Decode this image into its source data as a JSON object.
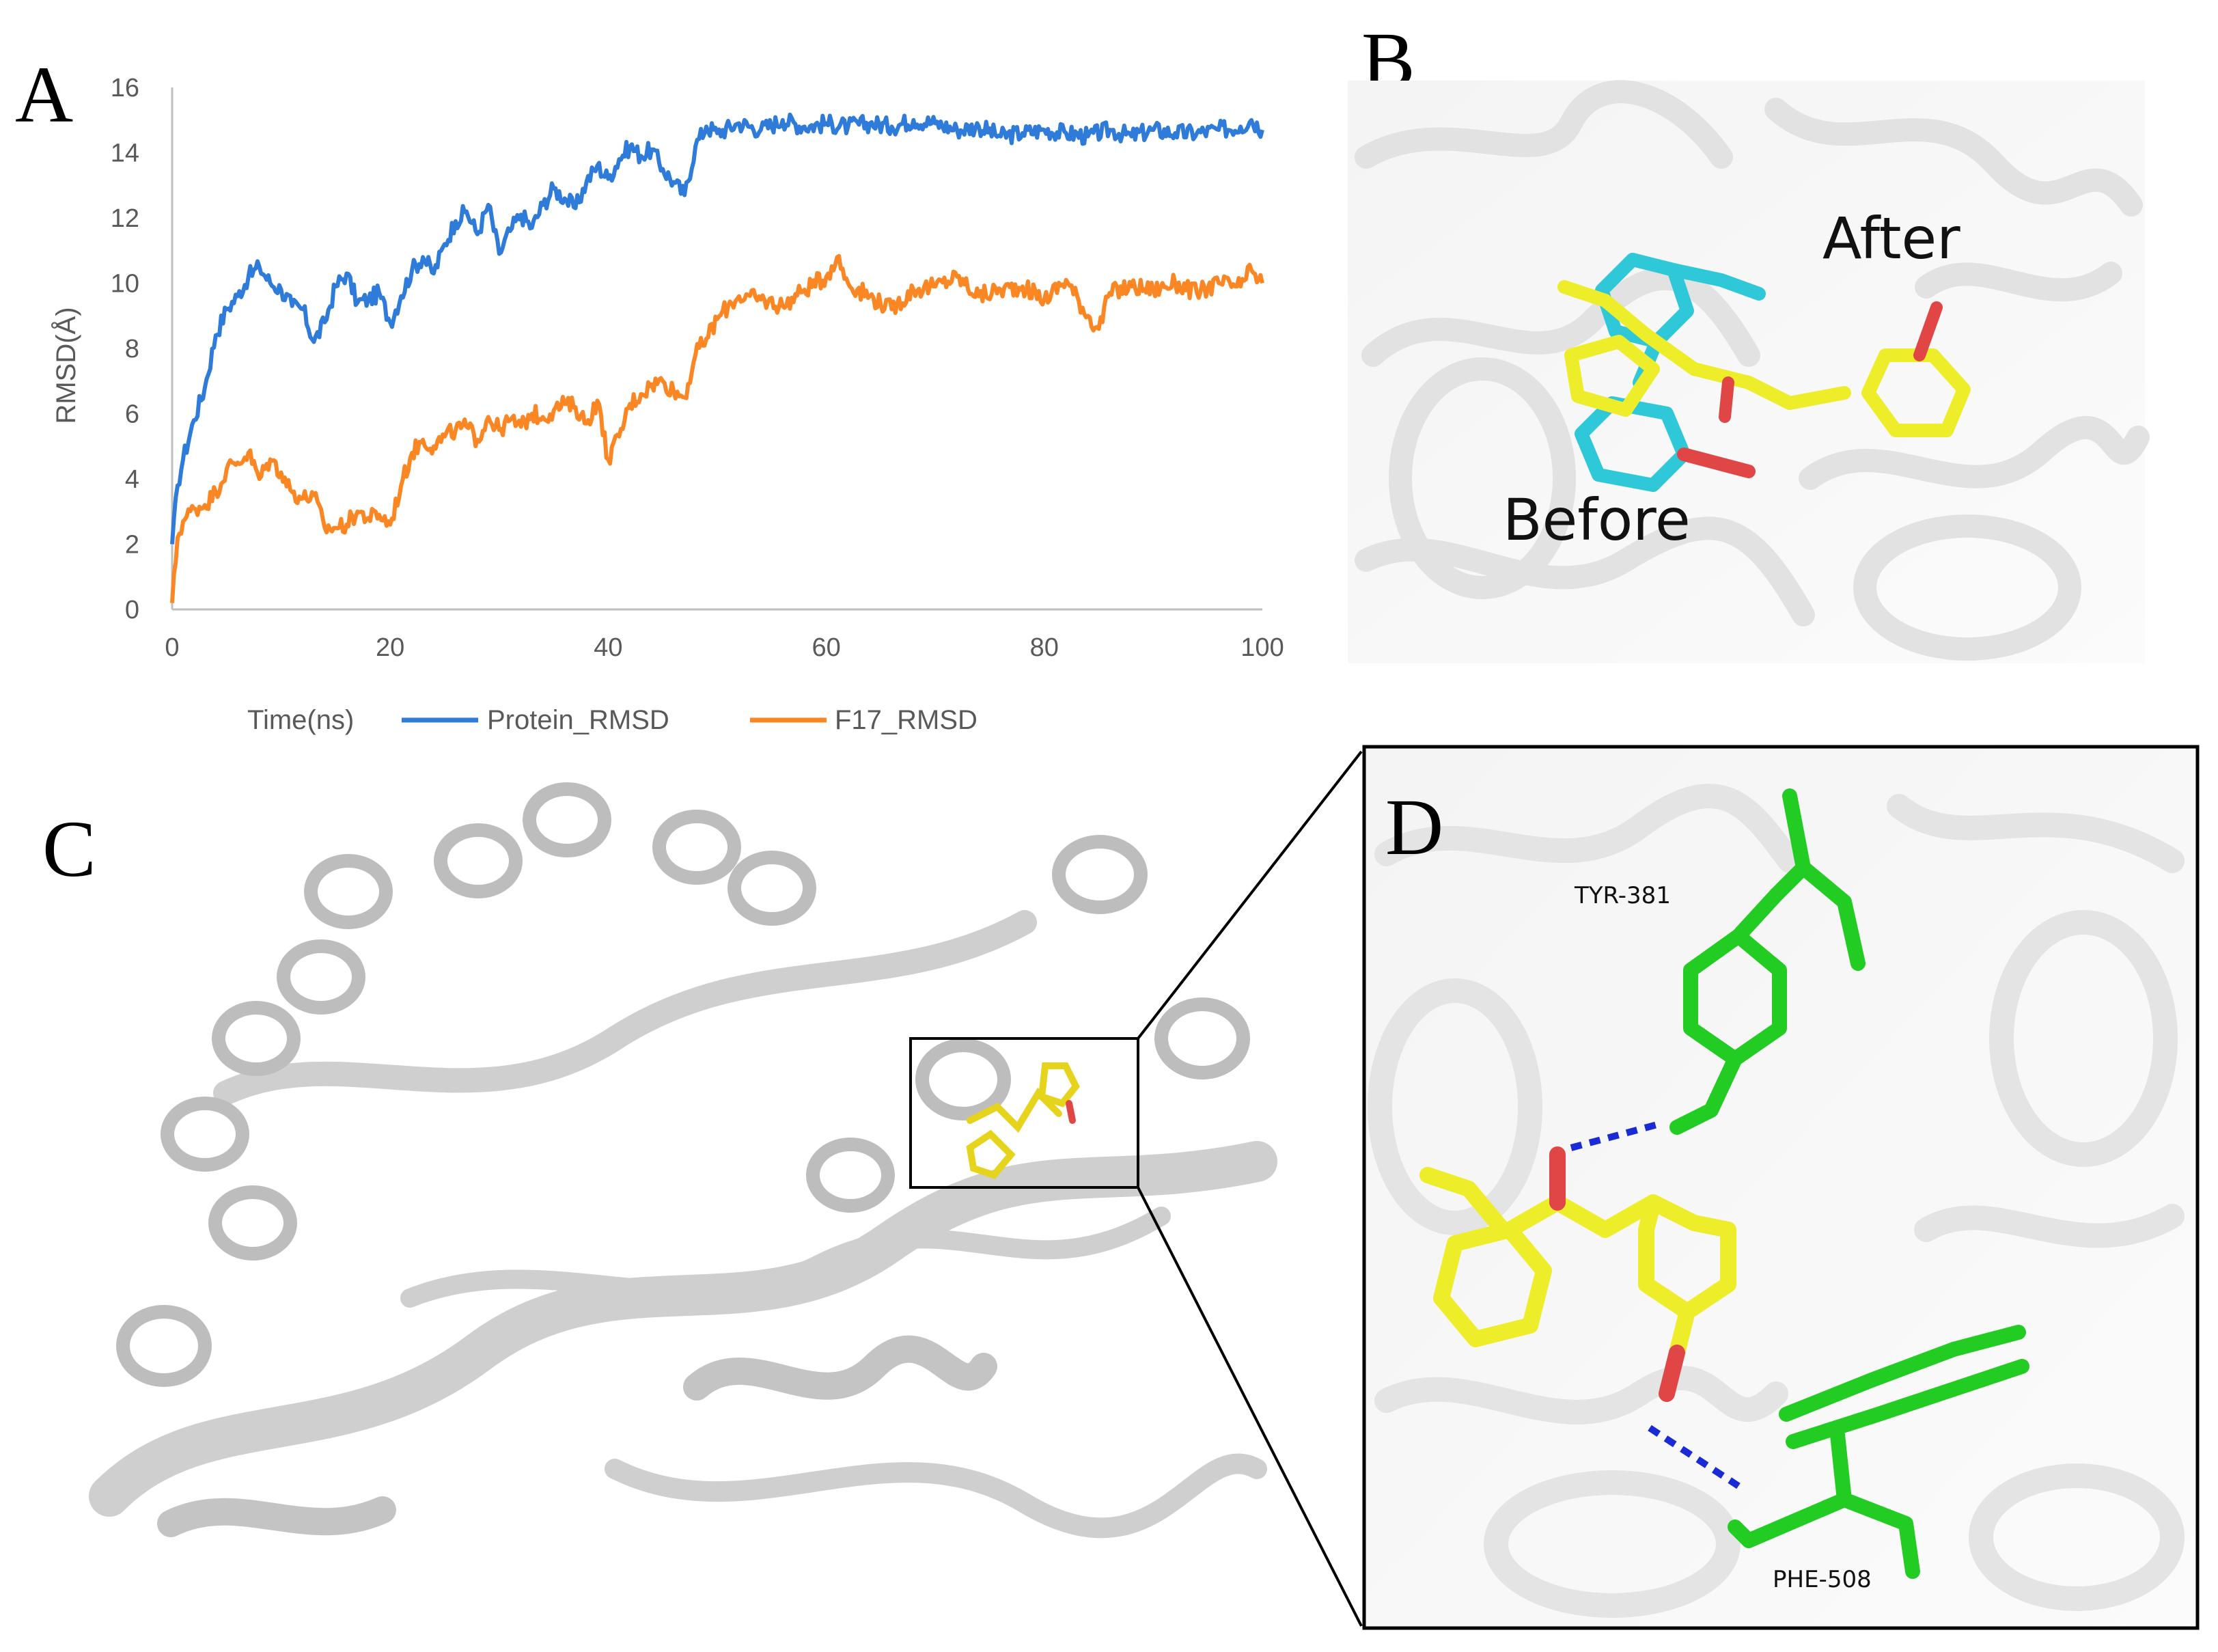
{
  "panels": {
    "A": {
      "letter": "A"
    },
    "B": {
      "letter": "B",
      "label_after": "After",
      "label_before": "Before"
    },
    "C": {
      "letter": "C"
    },
    "D": {
      "letter": "D",
      "residue_1": "TYR-381",
      "residue_2": "PHE-508"
    }
  },
  "colors": {
    "protein_series": "#2f7bd9",
    "ligand_series": "#fb8724",
    "ligand_yellow": "#eded2a",
    "ligand_cyan": "#2fc8d8",
    "residue_green": "#22cc22",
    "hbond": "#1a2ad6",
    "oxygen": "#e04646",
    "ribbon": "#e8e8e8"
  },
  "chart_data": {
    "type": "line",
    "xlabel": "Time(ns)",
    "ylabel": "RMSD(Å)",
    "xlim": [
      0,
      100
    ],
    "ylim": [
      0,
      16
    ],
    "xticks": [
      "0",
      "20",
      "40",
      "60",
      "80",
      "100"
    ],
    "yticks": [
      "0",
      "2",
      "4",
      "6",
      "8",
      "10",
      "12",
      "14",
      "16"
    ],
    "grid": false,
    "legend_position": "bottom",
    "series": [
      {
        "name": "Protein_RMSD",
        "color": "#2f7bd9",
        "x": [
          0,
          0.5,
          1,
          2,
          3,
          4,
          5,
          6,
          7,
          8,
          9,
          10,
          11,
          12,
          13,
          14,
          15,
          16,
          17,
          18,
          19,
          20,
          21,
          22,
          23,
          24,
          25,
          26,
          27,
          28,
          29,
          30,
          31,
          32,
          33,
          34,
          35,
          36,
          37,
          38,
          39,
          40,
          41,
          42,
          43,
          44,
          45,
          46,
          47,
          48,
          49,
          50,
          52,
          54,
          56,
          58,
          60,
          62,
          64,
          66,
          68,
          70,
          72,
          74,
          76,
          78,
          80,
          82,
          84,
          86,
          88,
          90,
          92,
          94,
          96,
          98,
          99,
          100
        ],
        "y": [
          2.0,
          3.8,
          4.6,
          5.8,
          6.8,
          8.4,
          9.2,
          9.6,
          10.2,
          10.5,
          10.0,
          9.8,
          9.3,
          9.2,
          8.2,
          8.8,
          9.9,
          10.3,
          9.4,
          9.5,
          9.7,
          8.8,
          9.6,
          10.4,
          10.8,
          10.3,
          11.2,
          11.9,
          12.2,
          11.5,
          12.4,
          10.9,
          11.6,
          12.1,
          11.7,
          12.4,
          12.9,
          12.6,
          12.3,
          13.1,
          13.6,
          13.2,
          13.8,
          14.2,
          13.9,
          14.1,
          13.5,
          13.1,
          12.7,
          14.2,
          14.8,
          14.6,
          14.9,
          14.7,
          15.0,
          14.8,
          14.9,
          14.8,
          14.9,
          14.8,
          15.0,
          14.9,
          14.7,
          14.8,
          14.5,
          14.6,
          14.7,
          14.6,
          14.5,
          14.7,
          14.5,
          14.7,
          14.6,
          14.6,
          14.7,
          14.8,
          15.0,
          14.7
        ]
      },
      {
        "name": "F17_RMSD",
        "color": "#fb8724",
        "x": [
          0,
          0.5,
          1,
          2,
          3,
          4,
          5,
          6,
          7,
          8,
          9,
          10,
          11,
          12,
          13,
          14,
          15,
          16,
          17,
          18,
          19,
          20,
          21,
          22,
          23,
          24,
          25,
          26,
          27,
          28,
          29,
          30,
          31,
          32,
          33,
          34,
          35,
          36,
          37,
          38,
          39,
          40,
          41,
          42,
          43,
          44,
          45,
          46,
          47,
          48,
          49,
          50,
          51,
          52,
          54,
          56,
          58,
          60,
          61,
          62,
          64,
          66,
          68,
          70,
          72,
          74,
          76,
          78,
          80,
          82,
          84,
          85,
          86,
          88,
          90,
          92,
          94,
          96,
          98,
          99,
          100
        ],
        "y": [
          0.2,
          2.2,
          2.7,
          3.1,
          3.2,
          3.6,
          4.3,
          4.5,
          4.8,
          4.0,
          4.6,
          4.2,
          3.6,
          3.4,
          3.5,
          2.5,
          2.5,
          2.6,
          3.0,
          2.8,
          2.9,
          2.6,
          3.8,
          4.8,
          5.2,
          5.0,
          5.3,
          5.5,
          5.6,
          5.2,
          5.9,
          5.5,
          5.8,
          5.6,
          6.0,
          5.9,
          6.1,
          6.3,
          6.2,
          5.7,
          6.4,
          4.6,
          5.3,
          6.3,
          6.6,
          6.9,
          7.0,
          6.7,
          6.5,
          7.8,
          8.3,
          8.9,
          9.3,
          9.6,
          9.5,
          9.3,
          9.8,
          10.2,
          10.8,
          10.0,
          9.6,
          9.2,
          9.8,
          9.9,
          10.2,
          9.6,
          9.8,
          9.9,
          9.5,
          10.1,
          9.0,
          8.6,
          9.7,
          9.9,
          9.8,
          10.0,
          9.7,
          10.0,
          9.9,
          10.4,
          10.0
        ]
      }
    ]
  }
}
